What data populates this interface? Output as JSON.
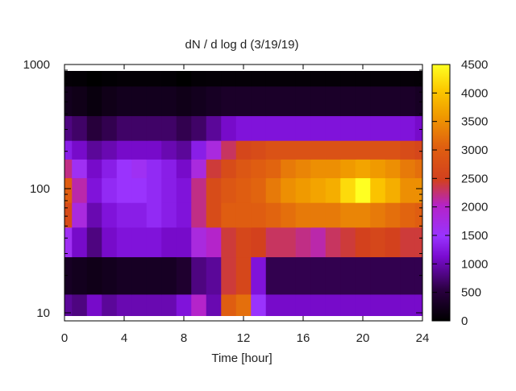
{
  "chart_data": {
    "type": "heatmap",
    "title": "dN / d log d (3/19/19)",
    "xlabel": "Time [hour]",
    "ylabel": "",
    "xlim": [
      0,
      24
    ],
    "ylim": [
      9,
      900
    ],
    "y_scale": "log",
    "x_ticks": [
      "0",
      "4",
      "8",
      "12",
      "16",
      "20",
      "24"
    ],
    "x_tick_values": [
      0,
      4,
      8,
      12,
      16,
      20,
      24
    ],
    "y_ticks": [
      "10",
      "100",
      "1000"
    ],
    "y_tick_values": [
      10,
      100,
      1000
    ],
    "colorbar": {
      "range": [
        0,
        4500
      ],
      "ticks": [
        "0",
        "500",
        "1000",
        "1500",
        "2000",
        "2500",
        "3000",
        "3500",
        "4000",
        "4500"
      ],
      "tick_values": [
        0,
        500,
        1000,
        1500,
        2000,
        2500,
        3000,
        3500,
        4000,
        4500
      ],
      "colormap": [
        [
          0,
          "#000000"
        ],
        [
          0.12,
          "#2a0040"
        ],
        [
          0.25,
          "#7a0bd0"
        ],
        [
          0.33,
          "#9933ff"
        ],
        [
          0.45,
          "#b523c7"
        ],
        [
          0.55,
          "#d2401e"
        ],
        [
          0.68,
          "#e06010"
        ],
        [
          0.8,
          "#f09a00"
        ],
        [
          0.9,
          "#fcc800"
        ],
        [
          1.0,
          "#ffff22"
        ]
      ]
    },
    "grid": false,
    "time_hours": [
      0,
      1,
      2,
      3,
      4,
      5,
      6,
      7,
      8,
      9,
      10,
      11,
      12,
      13,
      14,
      15,
      16,
      17,
      18,
      19,
      20,
      21,
      22,
      23,
      24
    ],
    "diameters": [
      10,
      20,
      40,
      60,
      100,
      150,
      200,
      300,
      500,
      900
    ],
    "values": [
      [
        900,
        800,
        1100,
        900,
        1000,
        1000,
        1000,
        1000,
        1200,
        2000,
        1000,
        3000,
        3200,
        1500,
        1100,
        1100,
        1100,
        1100,
        1100,
        1100,
        1100,
        1100,
        1100,
        1100,
        1100
      ],
      [
        300,
        250,
        200,
        250,
        300,
        300,
        300,
        300,
        400,
        800,
        900,
        2400,
        2600,
        1200,
        600,
        600,
        600,
        600,
        600,
        600,
        600,
        600,
        600,
        600,
        600
      ],
      [
        1600,
        1100,
        800,
        1100,
        1200,
        1200,
        1200,
        1100,
        1100,
        1800,
        2000,
        2400,
        2600,
        2500,
        2300,
        2300,
        2200,
        2100,
        2300,
        2400,
        2500,
        2600,
        2500,
        2400,
        2400
      ],
      [
        2700,
        1800,
        1000,
        1200,
        1300,
        1300,
        1400,
        1300,
        1200,
        2200,
        2700,
        3000,
        3000,
        3000,
        3100,
        3200,
        3300,
        3300,
        3300,
        3400,
        3400,
        3300,
        3200,
        3100,
        3000
      ],
      [
        3000,
        2100,
        1200,
        1400,
        1500,
        1500,
        1400,
        1300,
        1200,
        2200,
        2700,
        2900,
        3000,
        3100,
        3300,
        3500,
        3600,
        3700,
        3800,
        4200,
        4500,
        4000,
        3800,
        3500,
        3500
      ],
      [
        2200,
        1600,
        1100,
        1300,
        1500,
        1600,
        1400,
        1300,
        1100,
        1800,
        2400,
        2700,
        2900,
        3000,
        3100,
        3300,
        3400,
        3500,
        3500,
        3600,
        3700,
        3600,
        3500,
        3300,
        3200
      ],
      [
        1300,
        1100,
        900,
        1000,
        1100,
        1100,
        1100,
        1000,
        900,
        1300,
        1800,
        2300,
        2600,
        2700,
        2800,
        2800,
        2800,
        2800,
        2800,
        2800,
        2800,
        2800,
        2800,
        2700,
        2600
      ],
      [
        800,
        700,
        500,
        600,
        700,
        700,
        700,
        700,
        600,
        700,
        900,
        1100,
        1200,
        1200,
        1200,
        1200,
        1200,
        1200,
        1200,
        1200,
        1200,
        1200,
        1200,
        1200,
        1100
      ],
      [
        250,
        200,
        120,
        200,
        250,
        250,
        250,
        250,
        200,
        250,
        300,
        350,
        350,
        350,
        350,
        350,
        350,
        350,
        350,
        350,
        350,
        350,
        350,
        350,
        300
      ],
      [
        50,
        40,
        0,
        30,
        50,
        50,
        50,
        40,
        0,
        50,
        60,
        60,
        60,
        60,
        60,
        60,
        60,
        60,
        60,
        60,
        60,
        60,
        60,
        60,
        50
      ]
    ]
  }
}
